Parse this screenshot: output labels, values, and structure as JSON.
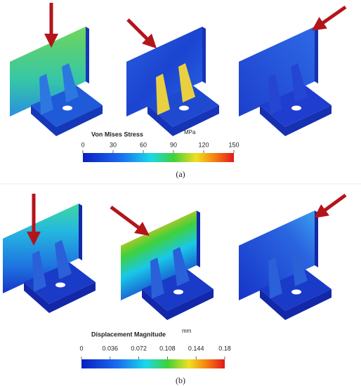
{
  "panels": [
    {
      "colorbar": {
        "title": "Von Mises Stress",
        "unit": "MPa",
        "range": [
          0,
          150
        ],
        "ticks": [
          0,
          30,
          60,
          90,
          120,
          150
        ]
      },
      "caption": "(a)"
    },
    {
      "colorbar": {
        "title": "Displacement Magnitude",
        "unit": "mm",
        "range": [
          0,
          0.18
        ],
        "ticks": [
          0,
          0.036,
          0.072,
          0.108,
          0.144,
          0.18
        ]
      },
      "caption": "(b)"
    }
  ]
}
